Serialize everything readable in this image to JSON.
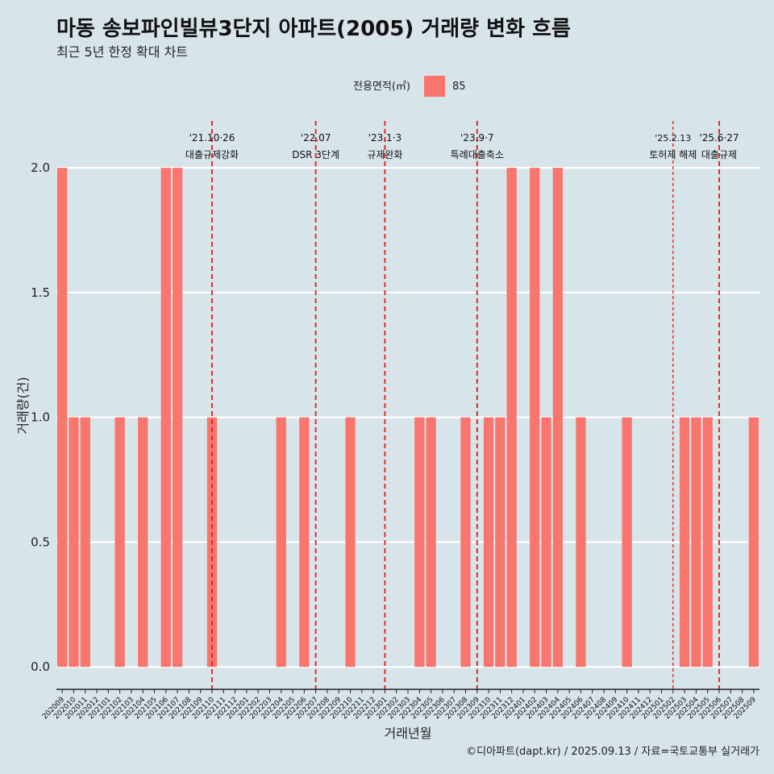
{
  "title": "마동 송보파인빌뷰3단지 아파트(2005) 거래량 변화 흐름",
  "subtitle": "최근 5년 한정 확대 차트",
  "legend": {
    "title": "전용면적(㎡)",
    "items": [
      {
        "label": "85",
        "color": "#f8766d"
      }
    ]
  },
  "caption": "©디아파트(dapt.kr) / 2025.09.13 / 자료=국토교통부 실거래가",
  "colors": {
    "background": "#d7e4ea",
    "bar": "#f8766d",
    "gridline": "#ffffff",
    "event_line": "#e31a1c"
  },
  "chart_data": {
    "type": "bar",
    "xlabel": "거래년월",
    "ylabel": "거래량(건)",
    "ylim": [
      -0.09,
      2.22
    ],
    "yticks": [
      "0.0",
      "0.5",
      "1.0",
      "1.5",
      "2.0"
    ],
    "categories": [
      "202009",
      "202010",
      "202011",
      "202012",
      "202101",
      "202102",
      "202103",
      "202104",
      "202105",
      "202106",
      "202107",
      "202108",
      "202109",
      "202110",
      "202111",
      "202112",
      "202201",
      "202202",
      "202203",
      "202204",
      "202205",
      "202206",
      "202207",
      "202208",
      "202209",
      "202210",
      "202211",
      "202212",
      "202301",
      "202302",
      "202303",
      "202304",
      "202305",
      "202306",
      "202307",
      "202308",
      "202309",
      "202310",
      "202311",
      "202312",
      "202401",
      "202402",
      "202403",
      "202404",
      "202405",
      "202406",
      "202407",
      "202408",
      "202409",
      "202410",
      "202411",
      "202412",
      "202501",
      "202502",
      "202503",
      "202504",
      "202505",
      "202506",
      "202507",
      "202508",
      "202509"
    ],
    "series": [
      {
        "name": "85",
        "values": [
          2,
          1,
          1,
          0,
          0,
          1,
          0,
          1,
          0,
          2,
          2,
          0,
          0,
          1,
          0,
          0,
          0,
          0,
          0,
          1,
          0,
          1,
          0,
          0,
          0,
          1,
          0,
          0,
          0,
          0,
          0,
          1,
          1,
          0,
          0,
          1,
          0,
          1,
          1,
          2,
          0,
          2,
          1,
          2,
          0,
          1,
          0,
          0,
          0,
          1,
          0,
          0,
          0,
          0,
          1,
          1,
          1,
          0,
          0,
          0,
          1
        ]
      }
    ],
    "grid": true,
    "legend_position": "top",
    "annotations": [
      {
        "x": "202110",
        "date": "'21.10·26",
        "label": "대출규제강화",
        "style": "dashed"
      },
      {
        "x": "202207",
        "date": "'22.07",
        "label": "DSR 3단계",
        "style": "dashed"
      },
      {
        "x": "202301",
        "date": "'23.1·3",
        "label": "규제완화",
        "style": "dashed"
      },
      {
        "x": "202309",
        "date": "'23.9·7",
        "label": "특례대출축소",
        "style": "dashed"
      },
      {
        "x": "202502",
        "date": "'25.2.13",
        "label": "토허제 해제",
        "style": "dotted"
      },
      {
        "x": "202506",
        "date": "'25.6·27",
        "label": "대출규제",
        "style": "dashed"
      }
    ]
  }
}
